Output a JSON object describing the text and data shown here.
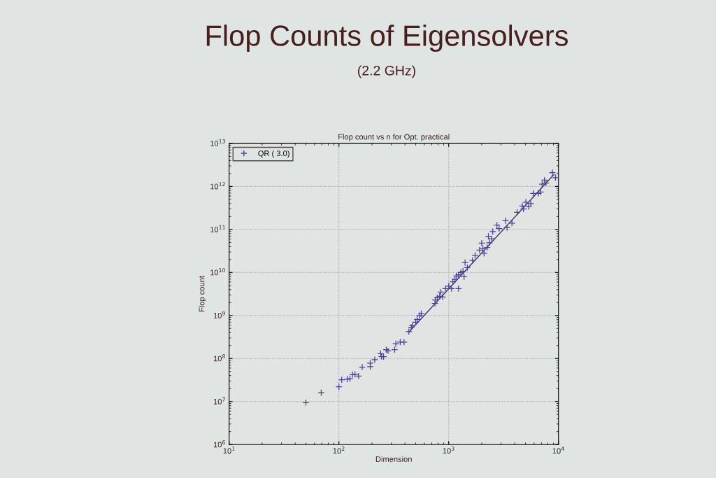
{
  "chart_data": {
    "type": "scatter",
    "title": "Flop Counts of Eigensolvers",
    "subtitle": "(2.2 GHz)",
    "annotations": [
      "Flop count vs n for Opt. practical"
    ],
    "xlabel": "Dimension",
    "ylabel": "Flop count",
    "log": "xy",
    "grid": true,
    "legend": "top left",
    "xlim": [
      10,
      10000
    ],
    "ylim": [
      1000000,
      10000000000000
    ],
    "xticks": [
      {
        "value": 10,
        "label": "10$^{1}$"
      },
      {
        "value": 100,
        "label": "10$^{2}$"
      },
      {
        "value": 1000,
        "label": "10$^{3}$"
      },
      {
        "value": 10000,
        "label": "10$^{4}$"
      }
    ],
    "yticks": [
      {
        "value": 1000000,
        "label": "10$^{6}$"
      },
      {
        "value": 10000000,
        "label": "10$^{7}$"
      },
      {
        "value": 100000000,
        "label": "10$^{8}$"
      },
      {
        "value": 1000000000,
        "label": "10$^{9}$"
      },
      {
        "value": 10000000000,
        "label": "10$^{10}$"
      },
      {
        "value": 100000000000,
        "label": "10$^{11}$"
      },
      {
        "value": 1000000000000,
        "label": "10$^{12}$"
      },
      {
        "value": 10000000000000,
        "label": "10$^{13}$"
      }
    ],
    "series": [
      {
        "name": "QR ( 3.0)",
        "marker": "cross",
        "color": "#4b3f9a",
        "x": [
          50,
          69,
          100,
          106,
          119,
          126,
          133,
          140,
          151,
          163,
          193,
          193,
          212,
          240,
          245,
          255,
          270,
          280,
          322,
          330,
          362,
          392,
          434,
          456,
          467,
          500,
          516,
          543,
          562,
          750,
          755,
          787,
          827,
          848,
          883,
          937,
          1000,
          1060,
          1090,
          1140,
          1175,
          1230,
          1230,
          1290,
          1350,
          1380,
          1410,
          1480,
          1650,
          1740,
          1910,
          2000,
          2050,
          2100,
          2240,
          2300,
          2350,
          2460,
          2520,
          2750,
          2880,
          3300,
          3400,
          3770,
          4200,
          4680,
          4800,
          5050,
          5350,
          5600,
          5900,
          6550,
          6900,
          7100,
          7450,
          7700,
          8800,
          9400
        ],
        "values": [
          9400000,
          16000000,
          22000000,
          32000000,
          33000000,
          34000000,
          42000000,
          43000000,
          39000000,
          63000000,
          65000000,
          78000000,
          94000000,
          130000000,
          110000000,
          110000000,
          160000000,
          150000000,
          160000000,
          220000000,
          240000000,
          240000000,
          420000000,
          530000000,
          580000000,
          700000000,
          810000000,
          1000000000,
          1100000000,
          1900000000,
          2300000000,
          2600000000,
          2800000000,
          3500000000,
          2700000000,
          4200000000,
          4800000000,
          4200000000,
          6100000000,
          6900000000,
          8300000000,
          4200000000,
          8800000000,
          10000000000,
          10700000000,
          8000000000,
          17000000000,
          13000000000,
          19000000000,
          25000000000,
          33000000000,
          48000000000,
          36000000000,
          28000000000,
          38000000000,
          69000000000,
          49000000000,
          61000000000,
          89000000000,
          126000000000,
          105000000000,
          160000000000,
          110000000000,
          140000000000,
          250000000000,
          350000000000,
          300000000000,
          430000000000,
          340000000000,
          400000000000,
          690000000000,
          690000000000,
          740000000000,
          1130000000000,
          1400000000000,
          1200000000000,
          2100000000000,
          1600000000000
        ]
      },
      {
        "type": "line",
        "color": "#3a3560",
        "line_style": "solid",
        "x": [
          434,
          9100
        ],
        "values": [
          410000000,
          1900000000000
        ]
      }
    ]
  }
}
